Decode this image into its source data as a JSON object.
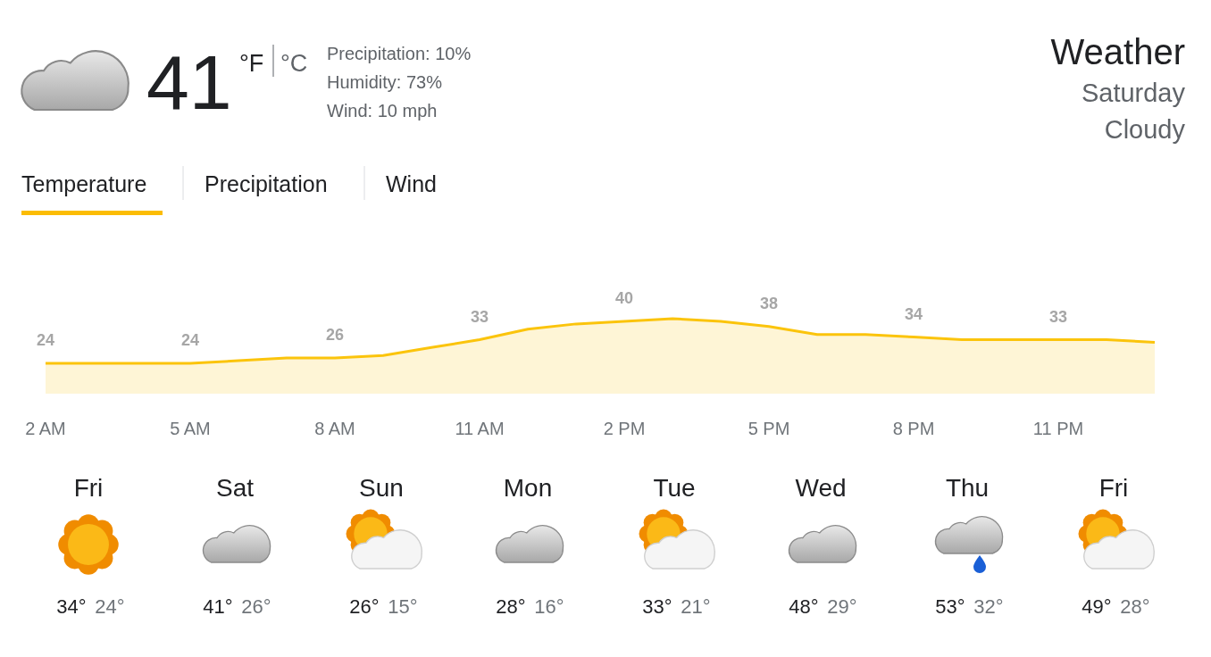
{
  "chart_data": [
    {
      "type": "other",
      "title": "Weather",
      "annotations": [
        "41",
        "°F",
        "°C",
        "Precipitation: 10%",
        "Humidity: 73%",
        "Wind: 10 mph",
        "Saturday",
        "Cloudy",
        "Temperature",
        "Precipitation",
        "Wind"
      ]
    },
    {
      "type": "area",
      "color": "#fbc40c",
      "categories": [
        "2 AM",
        null,
        null,
        "5 AM",
        null,
        null,
        "8 AM",
        null,
        null,
        "11 AM",
        null,
        null,
        "2 PM",
        null,
        null,
        "5 PM",
        null,
        null,
        "8 PM",
        null,
        null,
        "11 PM",
        null,
        null
      ],
      "values": [
        24,
        24,
        24,
        24,
        25,
        26,
        26,
        27,
        30,
        33,
        37,
        39,
        40,
        41,
        40,
        38,
        35,
        35,
        34,
        33,
        33,
        33,
        33,
        32
      ],
      "value_labels": [
        "24",
        null,
        null,
        "24",
        null,
        null,
        "26",
        null,
        null,
        "33",
        null,
        null,
        "40",
        null,
        null,
        "38",
        null,
        null,
        "34",
        null,
        null,
        "33",
        null,
        null
      ]
    },
    {
      "type": "other",
      "categories": [
        "Fri",
        "Sat",
        "Sun",
        "Mon",
        "Tue",
        "Wed",
        "Thu",
        "Fri"
      ],
      "series": [
        {
          "color": "#202124",
          "values": [
            34,
            41,
            26,
            28,
            33,
            48,
            53,
            49
          ],
          "value_labels": [
            "34°",
            "41°",
            "26°",
            "28°",
            "33°",
            "48°",
            "53°",
            "49°"
          ]
        },
        {
          "color": "#70757a",
          "values": [
            24,
            26,
            15,
            16,
            21,
            29,
            32,
            28
          ],
          "value_labels": [
            "24°",
            "26°",
            "15°",
            "16°",
            "21°",
            "29°",
            "32°",
            "28°"
          ]
        }
      ]
    }
  ]
}
